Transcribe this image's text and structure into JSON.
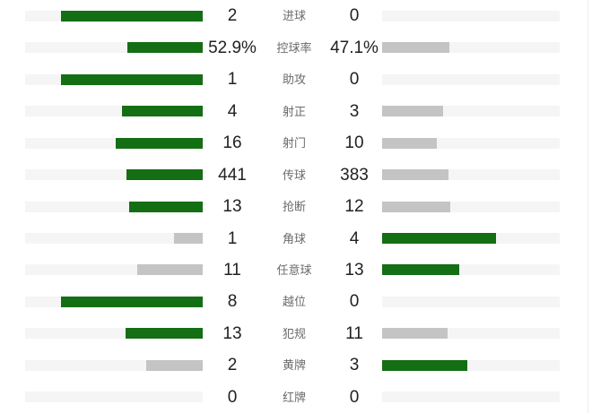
{
  "colors": {
    "bar_green": "#146e14",
    "bar_gray": "#c4c4c4",
    "track": "#f5f5f5",
    "value_text": "#212121",
    "label_text": "#6b6b6b",
    "background": "#ffffff"
  },
  "stats": {
    "rows": [
      {
        "label": "进球",
        "left": {
          "text": "2",
          "pct": 80,
          "color": "green"
        },
        "right": {
          "text": "0",
          "pct": 0,
          "color": "none"
        }
      },
      {
        "label": "控球率",
        "left": {
          "text": "52.9%",
          "pct": 42.3,
          "color": "green"
        },
        "right": {
          "text": "47.1%",
          "pct": 37.7,
          "color": "gray"
        }
      },
      {
        "label": "助攻",
        "left": {
          "text": "1",
          "pct": 80,
          "color": "green"
        },
        "right": {
          "text": "0",
          "pct": 0,
          "color": "none"
        }
      },
      {
        "label": "射正",
        "left": {
          "text": "4",
          "pct": 45.7,
          "color": "green"
        },
        "right": {
          "text": "3",
          "pct": 34.3,
          "color": "gray"
        }
      },
      {
        "label": "射门",
        "left": {
          "text": "16",
          "pct": 49.2,
          "color": "green"
        },
        "right": {
          "text": "10",
          "pct": 30.8,
          "color": "gray"
        }
      },
      {
        "label": "传球",
        "left": {
          "text": "441",
          "pct": 42.8,
          "color": "green"
        },
        "right": {
          "text": "383",
          "pct": 37.2,
          "color": "gray"
        }
      },
      {
        "label": "抢断",
        "left": {
          "text": "13",
          "pct": 41.6,
          "color": "green"
        },
        "right": {
          "text": "12",
          "pct": 38.4,
          "color": "gray"
        }
      },
      {
        "label": "角球",
        "left": {
          "text": "1",
          "pct": 16,
          "color": "gray"
        },
        "right": {
          "text": "4",
          "pct": 64,
          "color": "green"
        }
      },
      {
        "label": "任意球",
        "left": {
          "text": "11",
          "pct": 36.7,
          "color": "gray"
        },
        "right": {
          "text": "13",
          "pct": 43.3,
          "color": "green"
        }
      },
      {
        "label": "越位",
        "left": {
          "text": "8",
          "pct": 80,
          "color": "green"
        },
        "right": {
          "text": "0",
          "pct": 0,
          "color": "none"
        }
      },
      {
        "label": "犯规",
        "left": {
          "text": "13",
          "pct": 43.3,
          "color": "green"
        },
        "right": {
          "text": "11",
          "pct": 36.7,
          "color": "gray"
        }
      },
      {
        "label": "黄牌",
        "left": {
          "text": "2",
          "pct": 32,
          "color": "gray"
        },
        "right": {
          "text": "3",
          "pct": 48,
          "color": "green"
        }
      },
      {
        "label": "红牌",
        "left": {
          "text": "0",
          "pct": 0,
          "color": "none"
        },
        "right": {
          "text": "0",
          "pct": 0,
          "color": "none"
        }
      }
    ]
  },
  "chart_data": {
    "type": "bar",
    "orientation": "horizontal-paired",
    "title": "",
    "categories": [
      "进球",
      "控球率",
      "助攻",
      "射正",
      "射门",
      "传球",
      "抢断",
      "角球",
      "任意球",
      "越位",
      "犯规",
      "黄牌",
      "红牌"
    ],
    "series": [
      {
        "name": "home",
        "values": [
          2,
          52.9,
          1,
          4,
          16,
          441,
          13,
          1,
          11,
          8,
          13,
          2,
          0
        ],
        "display": [
          "2",
          "52.9%",
          "1",
          "4",
          "16",
          "441",
          "13",
          "1",
          "11",
          "8",
          "13",
          "2",
          "0"
        ]
      },
      {
        "name": "away",
        "values": [
          0,
          47.1,
          0,
          3,
          10,
          383,
          12,
          4,
          13,
          0,
          11,
          3,
          0
        ],
        "display": [
          "0",
          "47.1%",
          "0",
          "3",
          "10",
          "383",
          "12",
          "4",
          "13",
          "0",
          "11",
          "3",
          "0"
        ]
      }
    ],
    "legend_position": "none",
    "grid": false,
    "bar_rule": "fill fraction of track = value / (home+away) * 0.8; higher side green, lower side gray, zero = empty track"
  }
}
